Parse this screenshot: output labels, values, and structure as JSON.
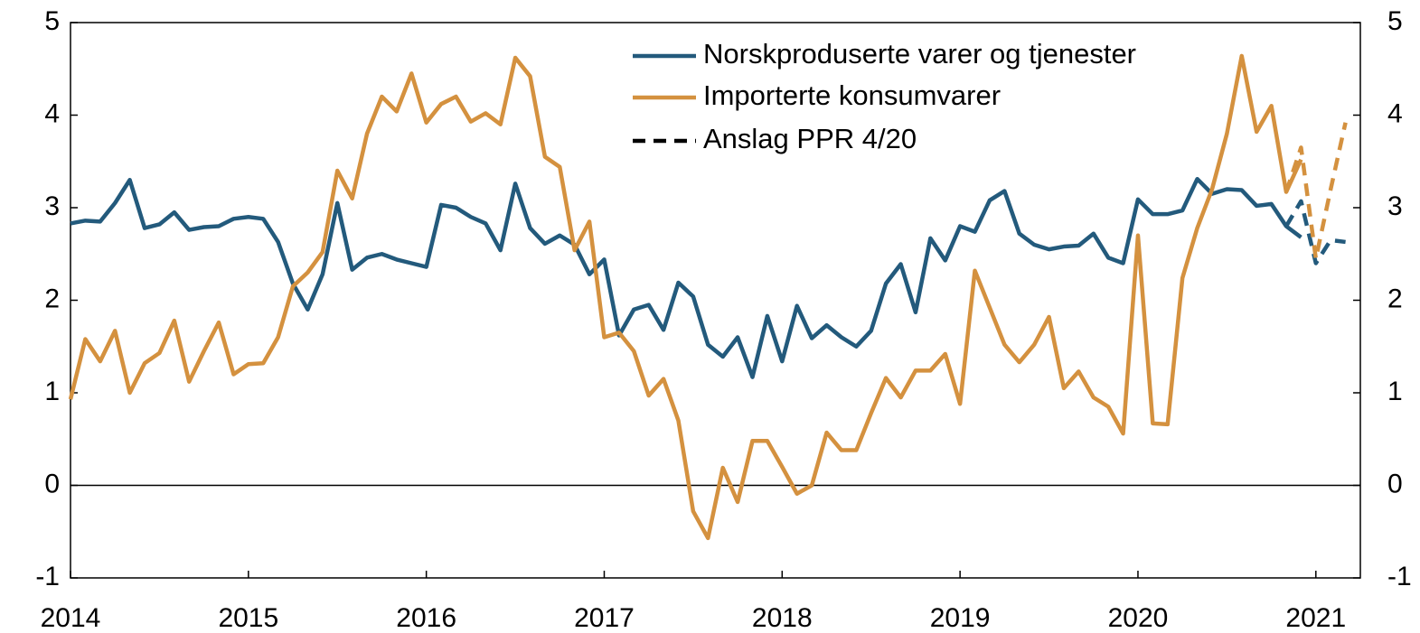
{
  "chart_data": {
    "type": "line",
    "x": [
      2014,
      2014.0833,
      2014.1667,
      2014.25,
      2014.3333,
      2014.4167,
      2014.5,
      2014.5833,
      2014.6667,
      2014.75,
      2014.8333,
      2014.9167,
      2015,
      2015.0833,
      2015.1667,
      2015.25,
      2015.3333,
      2015.4167,
      2015.5,
      2015.5833,
      2015.6667,
      2015.75,
      2015.8333,
      2015.9167,
      2016,
      2016.0833,
      2016.1667,
      2016.25,
      2016.3333,
      2016.4167,
      2016.5,
      2016.5833,
      2016.6667,
      2016.75,
      2016.8333,
      2016.9167,
      2017,
      2017.0833,
      2017.1667,
      2017.25,
      2017.3333,
      2017.4167,
      2017.5,
      2017.5833,
      2017.6667,
      2017.75,
      2017.8333,
      2017.9167,
      2018,
      2018.0833,
      2018.1667,
      2018.25,
      2018.3333,
      2018.4167,
      2018.5,
      2018.5833,
      2018.6667,
      2018.75,
      2018.8333,
      2018.9167,
      2019,
      2019.0833,
      2019.1667,
      2019.25,
      2019.3333,
      2019.4167,
      2019.5,
      2019.5833,
      2019.6667,
      2019.75,
      2019.8333,
      2019.9167,
      2020,
      2020.0833,
      2020.1667,
      2020.25,
      2020.3333,
      2020.4167,
      2020.5,
      2020.5833,
      2020.6667,
      2020.75,
      2020.8333,
      2020.9167,
      2021,
      2021.0833,
      2021.1667
    ],
    "series": [
      {
        "name": "Norskproduserte varer og tjenester",
        "color": "#235a7c",
        "values": [
          2.83,
          2.86,
          2.85,
          3.05,
          3.3,
          2.78,
          2.82,
          2.95,
          2.76,
          2.79,
          2.8,
          2.88,
          2.9,
          2.88,
          2.63,
          2.18,
          1.9,
          2.28,
          3.05,
          2.33,
          2.46,
          2.5,
          2.44,
          2.4,
          2.36,
          3.03,
          3.0,
          2.9,
          2.83,
          2.54,
          3.26,
          2.78,
          2.61,
          2.7,
          2.6,
          2.28,
          2.44,
          1.62,
          1.9,
          1.95,
          1.68,
          2.19,
          2.04,
          1.52,
          1.39,
          1.6,
          1.17,
          1.83,
          1.34,
          1.94,
          1.59,
          1.73,
          1.6,
          1.5,
          1.67,
          2.18,
          2.39,
          1.87,
          2.67,
          2.43,
          2.8,
          2.74,
          3.08,
          3.18,
          2.72,
          2.6,
          2.55,
          2.58,
          2.59,
          2.72,
          2.46,
          2.4,
          3.09,
          2.93,
          2.93,
          2.97,
          3.31,
          3.15,
          3.2,
          3.19,
          3.02,
          3.04,
          2.8,
          2.68,
          null,
          null,
          null
        ],
        "forecast": [
          null,
          null,
          null,
          null,
          null,
          null,
          null,
          null,
          null,
          null,
          null,
          null,
          null,
          null,
          null,
          null,
          null,
          null,
          null,
          null,
          null,
          null,
          null,
          null,
          null,
          null,
          null,
          null,
          null,
          null,
          null,
          null,
          null,
          null,
          null,
          null,
          null,
          null,
          null,
          null,
          null,
          null,
          null,
          null,
          null,
          null,
          null,
          null,
          null,
          null,
          null,
          null,
          null,
          null,
          null,
          null,
          null,
          null,
          null,
          null,
          null,
          null,
          null,
          null,
          null,
          null,
          null,
          null,
          null,
          null,
          null,
          null,
          null,
          null,
          null,
          null,
          null,
          null,
          null,
          null,
          null,
          null,
          2.8,
          3.07,
          2.4,
          2.65,
          2.63
        ]
      },
      {
        "name": "Importerte konsumvarer",
        "color": "#d4913f",
        "values": [
          0.93,
          1.58,
          1.34,
          1.67,
          1.0,
          1.32,
          1.43,
          1.78,
          1.12,
          1.45,
          1.76,
          1.2,
          1.31,
          1.32,
          1.6,
          2.15,
          2.3,
          2.52,
          3.4,
          3.1,
          3.8,
          4.2,
          4.04,
          4.45,
          3.92,
          4.12,
          4.2,
          3.93,
          4.02,
          3.9,
          4.62,
          4.42,
          3.55,
          3.44,
          2.54,
          2.85,
          1.6,
          1.65,
          1.45,
          0.97,
          1.15,
          0.7,
          -0.28,
          -0.57,
          0.19,
          -0.18,
          0.48,
          0.48,
          0.2,
          -0.09,
          0.0,
          0.57,
          0.38,
          0.38,
          0.78,
          1.16,
          0.95,
          1.24,
          1.24,
          1.42,
          0.88,
          2.32,
          1.92,
          1.52,
          1.33,
          1.52,
          1.82,
          1.05,
          1.23,
          0.95,
          0.85,
          0.56,
          2.7,
          0.67,
          0.66,
          2.24,
          2.78,
          3.2,
          3.8,
          4.64,
          3.82,
          4.1,
          3.17,
          3.52,
          null,
          null,
          null
        ],
        "forecast": [
          null,
          null,
          null,
          null,
          null,
          null,
          null,
          null,
          null,
          null,
          null,
          null,
          null,
          null,
          null,
          null,
          null,
          null,
          null,
          null,
          null,
          null,
          null,
          null,
          null,
          null,
          null,
          null,
          null,
          null,
          null,
          null,
          null,
          null,
          null,
          null,
          null,
          null,
          null,
          null,
          null,
          null,
          null,
          null,
          null,
          null,
          null,
          null,
          null,
          null,
          null,
          null,
          null,
          null,
          null,
          null,
          null,
          null,
          null,
          null,
          null,
          null,
          null,
          null,
          null,
          null,
          null,
          null,
          null,
          null,
          null,
          null,
          null,
          null,
          null,
          null,
          null,
          null,
          null,
          null,
          null,
          null,
          3.17,
          3.65,
          2.45,
          3.2,
          3.92
        ]
      }
    ],
    "forecast_label": "Anslag PPR 4/20",
    "forecast_color": "#000000",
    "xlim": [
      2014,
      2021.25
    ],
    "xticks": [
      2014,
      2015,
      2016,
      2017,
      2018,
      2019,
      2020,
      2021
    ],
    "ylim": [
      -1,
      5
    ],
    "yticks": [
      -1,
      0,
      1,
      2,
      3,
      4,
      5
    ],
    "y2lim": [
      -1,
      5
    ],
    "y2ticks": [
      -1,
      0,
      1,
      2,
      3,
      4,
      5
    ]
  }
}
